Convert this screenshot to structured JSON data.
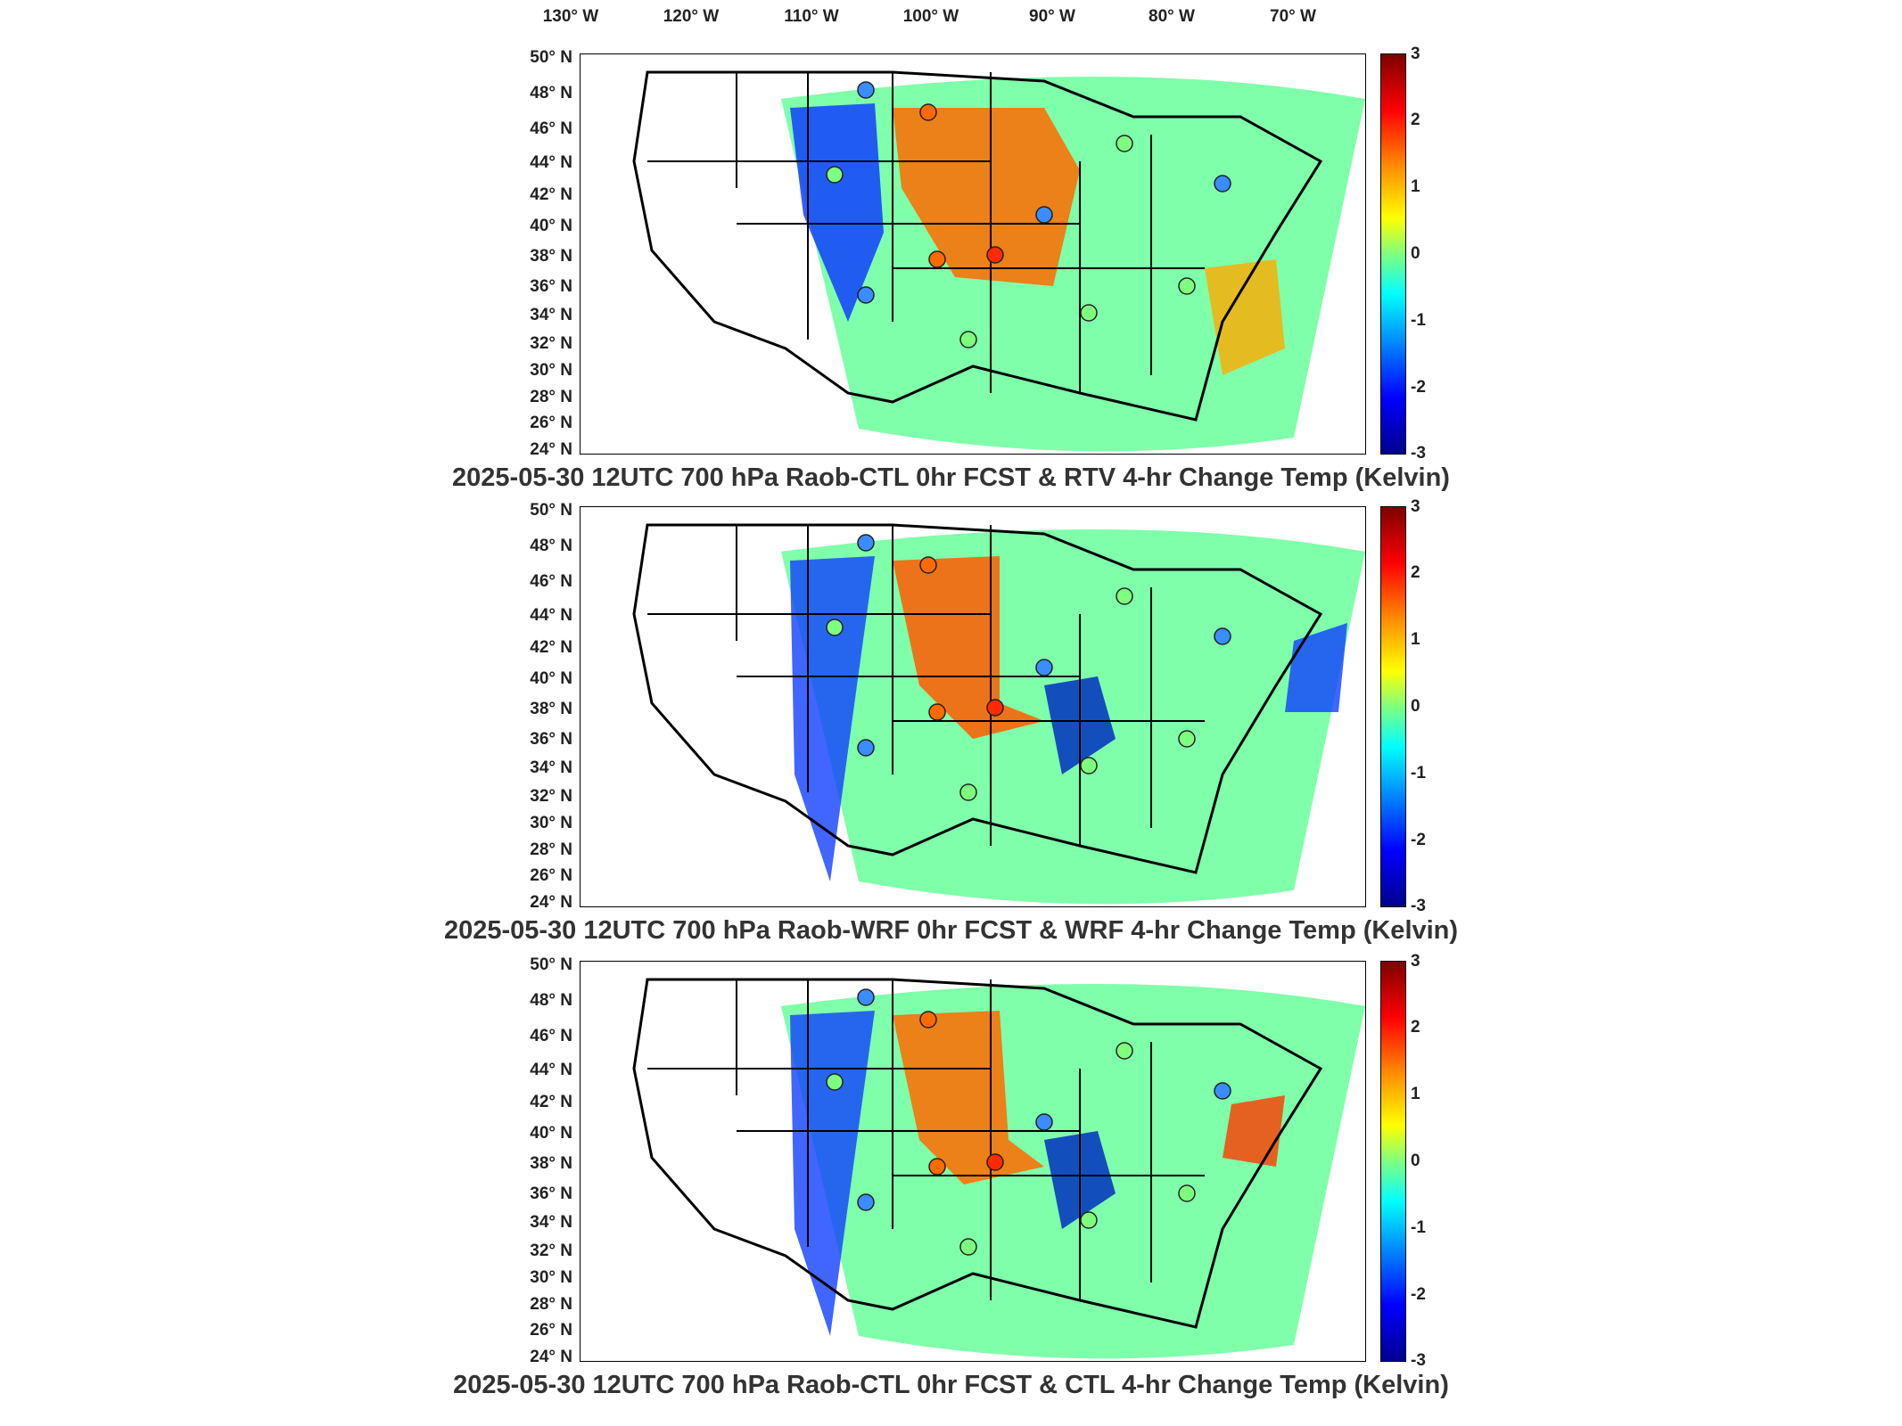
{
  "longitude_labels": [
    "130° W",
    "120° W",
    "110° W",
    "100° W",
    "90° W",
    "80° W",
    "70° W"
  ],
  "latitude_labels": [
    "50° N",
    "48° N",
    "46° N",
    "44° N",
    "42° N",
    "40° N",
    "38° N",
    "36° N",
    "34° N",
    "32° N",
    "30° N",
    "28° N",
    "26° N",
    "24° N"
  ],
  "colorbar": {
    "ticks": [
      "3",
      "2",
      "1",
      "0",
      "-1",
      "-2",
      "-3"
    ],
    "unit": "Kelvin",
    "colors": [
      "#7f0000",
      "#ff0000",
      "#ff8c00",
      "#ffff00",
      "#7fff7f",
      "#00ffff",
      "#0080ff",
      "#0000ff",
      "#00008f"
    ]
  },
  "panels": [
    {
      "id": "p1",
      "caption": "2025-05-30 12UTC 700 hPa Raob-CTL 0hr FCST & RTV 4-hr Change Temp (Kelvin)"
    },
    {
      "id": "p2",
      "caption": "2025-05-30 12UTC 700 hPa Raob-WRF 0hr FCST & WRF 4-hr Change Temp (Kelvin)"
    },
    {
      "id": "p3",
      "caption": "2025-05-30 12UTC 700 hPa Raob-CTL 0hr FCST & CTL 4-hr Change Temp (Kelvin)"
    }
  ]
}
